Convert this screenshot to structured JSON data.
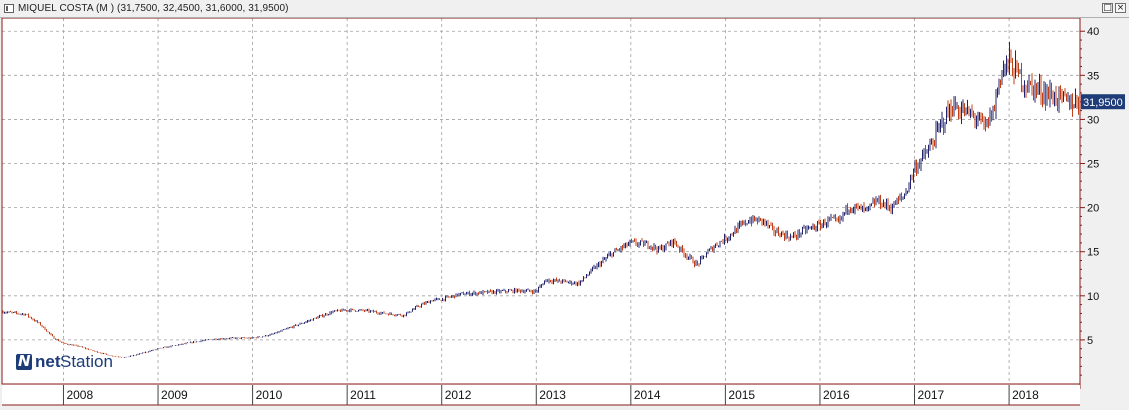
{
  "window": {
    "title": "MIQUEL COSTA (M ) (31,7500, 32,4500, 31,6000, 31,9500)",
    "restore_symbol": "□",
    "close_symbol": "×"
  },
  "logo": {
    "mark": "N",
    "net": "net",
    "station": "Station"
  },
  "colors": {
    "background": "#ffffff",
    "grid": "#a0a0a0",
    "border": "#8b1a1a",
    "up_bar": "#24246e",
    "down_bar": "#c0401a",
    "last_badge": "#1e3c78"
  },
  "chart_data": {
    "type": "line",
    "style": "ohlc-bars",
    "title": "MIQUEL COSTA (M )",
    "last_bar": {
      "open": 31.75,
      "high": 32.45,
      "low": 31.6,
      "close": 31.95
    },
    "last_value_label": "31,9500",
    "y_axis": {
      "position": "right",
      "ylim": [
        0,
        41.5
      ],
      "ticks": [
        5,
        10,
        15,
        20,
        25,
        30,
        35,
        40
      ]
    },
    "x_axis": {
      "xlim": [
        2007.35,
        2018.75
      ],
      "ticks": [
        2008,
        2009,
        2010,
        2011,
        2012,
        2013,
        2014,
        2015,
        2016,
        2017,
        2018
      ]
    },
    "grid": true,
    "series": [
      {
        "x": [
          2007.35,
          2007.6,
          2007.75,
          2007.9,
          2008.0,
          2008.15,
          2008.3,
          2008.5,
          2008.65,
          2008.8,
          2008.9,
          2009.0,
          2009.2,
          2009.4,
          2009.6,
          2009.8,
          2010.0,
          2010.2,
          2010.3,
          2010.5,
          2010.7,
          2010.85,
          2011.0,
          2011.2,
          2011.4,
          2011.6,
          2011.75,
          2011.9,
          2012.0,
          2012.2,
          2012.5,
          2012.8,
          2013.0,
          2013.1,
          2013.3,
          2013.45,
          2013.6,
          2013.8,
          2014.0,
          2014.2,
          2014.3,
          2014.45,
          2014.55,
          2014.7,
          2014.8,
          2014.9,
          2015.0,
          2015.15,
          2015.25,
          2015.4,
          2015.5,
          2015.7,
          2015.85,
          2016.0,
          2016.1,
          2016.2,
          2016.3,
          2016.5,
          2016.6,
          2016.75,
          2016.9,
          2017.0,
          2017.15,
          2017.3,
          2017.4,
          2017.5,
          2017.65,
          2017.75,
          2017.85,
          2017.9,
          2018.0,
          2018.1,
          2018.2,
          2018.35,
          2018.5,
          2018.6,
          2018.75
        ],
        "y": [
          8.2,
          7.9,
          6.8,
          5.2,
          4.6,
          4.3,
          3.8,
          3.2,
          3.0,
          3.4,
          3.7,
          4.0,
          4.4,
          4.8,
          5.1,
          5.2,
          5.2,
          5.6,
          6.0,
          6.8,
          7.6,
          8.2,
          8.4,
          8.3,
          8.0,
          7.8,
          8.8,
          9.5,
          9.6,
          10.2,
          10.4,
          10.6,
          10.5,
          11.8,
          11.6,
          11.4,
          13.0,
          14.8,
          16.0,
          15.8,
          15.2,
          16.2,
          15.0,
          13.5,
          14.8,
          15.8,
          16.5,
          17.8,
          18.6,
          18.5,
          17.4,
          16.6,
          17.5,
          18.0,
          18.6,
          18.3,
          20.2,
          19.6,
          20.8,
          20.0,
          21.5,
          24.5,
          26.5,
          29.8,
          31.5,
          31.0,
          30.2,
          29.0,
          31.5,
          35.0,
          36.5,
          35.0,
          33.8,
          33.2,
          32.5,
          32.0,
          31.95
        ]
      }
    ]
  }
}
